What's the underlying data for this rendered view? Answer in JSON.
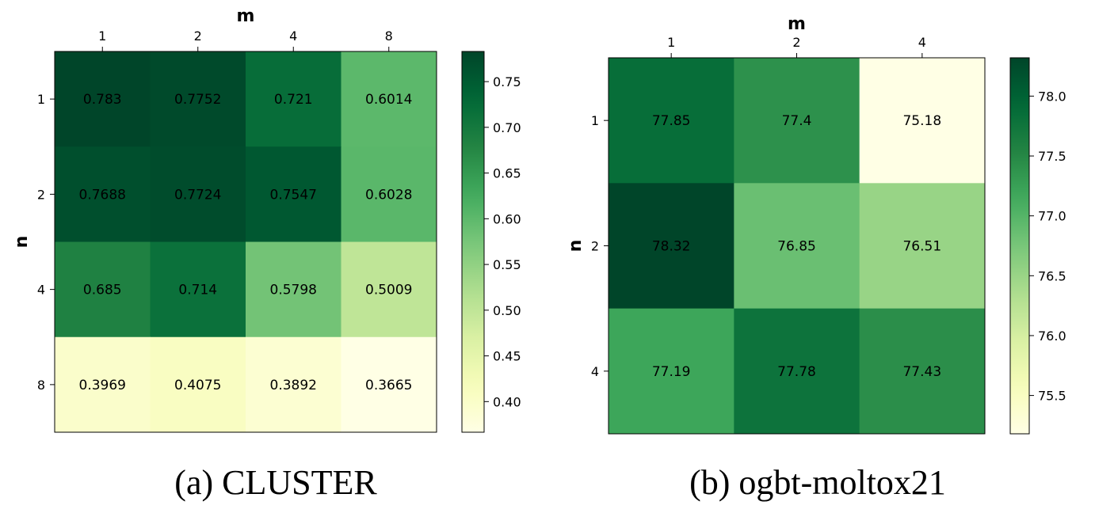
{
  "chart_data": [
    {
      "type": "heatmap",
      "caption": "(a) CLUSTER",
      "xlabel": "m",
      "ylabel": "n",
      "x_categories": [
        "1",
        "2",
        "4",
        "8"
      ],
      "y_categories": [
        "1",
        "2",
        "4",
        "8"
      ],
      "values": [
        [
          "0.783",
          "0.7752",
          "0.721",
          "0.6014"
        ],
        [
          "0.7688",
          "0.7724",
          "0.7547",
          "0.6028"
        ],
        [
          "0.685",
          "0.714",
          "0.5798",
          "0.5009"
        ],
        [
          "0.3969",
          "0.4075",
          "0.3892",
          "0.3665"
        ]
      ],
      "colorbar": {
        "min": 0.3665,
        "max": 0.783,
        "ticks": [
          "0.40",
          "0.45",
          "0.50",
          "0.55",
          "0.60",
          "0.65",
          "0.70",
          "0.75"
        ]
      },
      "colormap": "YlGn"
    },
    {
      "type": "heatmap",
      "caption": "(b) ogbt-moltox21",
      "xlabel": "m",
      "ylabel": "n",
      "x_categories": [
        "1",
        "2",
        "4"
      ],
      "y_categories": [
        "1",
        "2",
        "4"
      ],
      "values": [
        [
          "77.85",
          "77.4",
          "75.18"
        ],
        [
          "78.32",
          "76.85",
          "76.51"
        ],
        [
          "77.19",
          "77.78",
          "77.43"
        ]
      ],
      "colorbar": {
        "min": 75.18,
        "max": 78.32,
        "ticks": [
          "75.5",
          "76.0",
          "76.5",
          "77.0",
          "77.5",
          "78.0"
        ]
      },
      "colormap": "YlGn"
    }
  ]
}
